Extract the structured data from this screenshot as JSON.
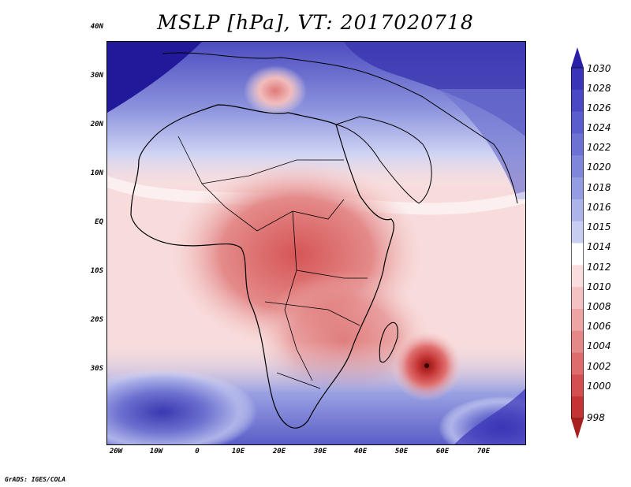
{
  "title": "MSLP [hPa], VT: 2017020718",
  "lat_labels": [
    "40N",
    "30N",
    "20N",
    "10N",
    "EQ",
    "10S",
    "20S",
    "30S"
  ],
  "lon_labels": [
    "20W",
    "10W",
    "0",
    "10E",
    "20E",
    "30E",
    "40E",
    "50E",
    "60E",
    "70E"
  ],
  "colorbar": {
    "labels": [
      "1030",
      "1028",
      "1026",
      "1024",
      "1022",
      "1020",
      "1018",
      "1016",
      "1015",
      "1014",
      "1012",
      "1010",
      "1008",
      "1006",
      "1004",
      "1002",
      "1000",
      "998"
    ],
    "colors": [
      "#2a1fa8",
      "#3a34b8",
      "#4a48c4",
      "#5b5dcc",
      "#6c72d3",
      "#7e87da",
      "#949de2",
      "#adb4ea",
      "#c8cdf2",
      "#ffffff",
      "#fadede",
      "#f4c2c2",
      "#eca4a4",
      "#e58888",
      "#de6c6c",
      "#d44f4f",
      "#c43434",
      "#a81f1f"
    ]
  },
  "footer": "GrADS: IGES/COLA"
}
